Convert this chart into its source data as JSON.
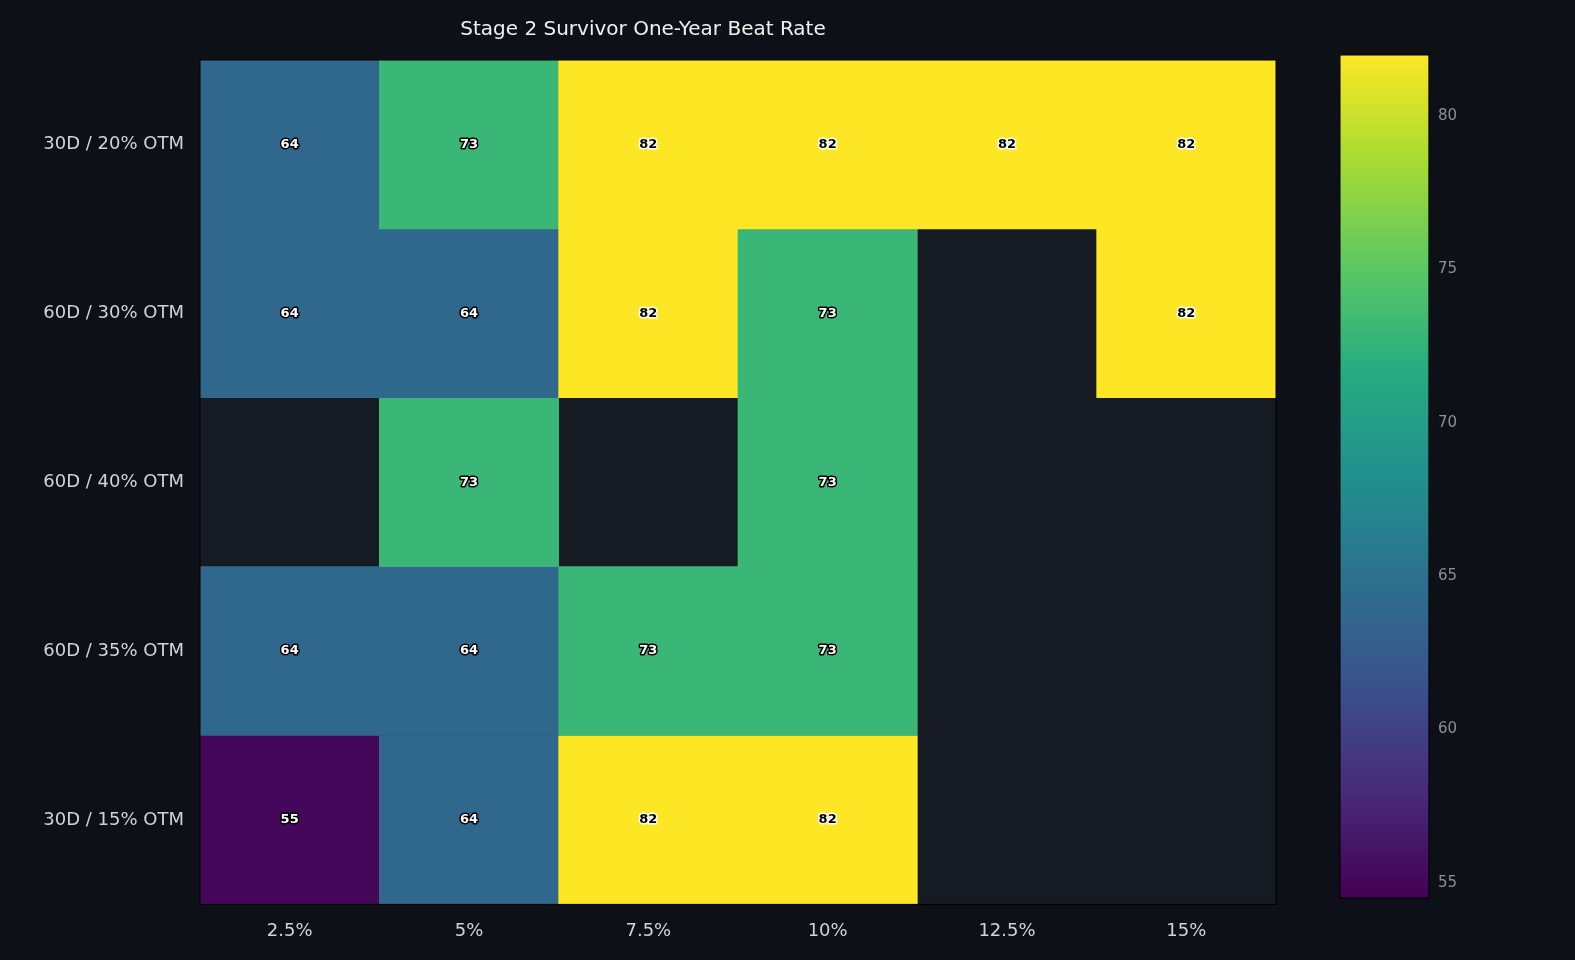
{
  "chart_data": {
    "type": "heatmap",
    "title": "Stage 2 Survivor One-Year Beat Rate",
    "categories": [
      "2.5%",
      "5%",
      "7.5%",
      "10%",
      "12.5%",
      "15%"
    ],
    "y_categories": [
      "30D / 20% OTM",
      "60D / 30% OTM",
      "60D / 40% OTM",
      "60D / 35% OTM",
      "30D / 15% OTM"
    ],
    "cells": [
      [
        64,
        73,
        82,
        82,
        82,
        82
      ],
      [
        64,
        64,
        82,
        73,
        null,
        82
      ],
      [
        null,
        73,
        null,
        73,
        null,
        null
      ],
      [
        64,
        64,
        73,
        73,
        null,
        null
      ],
      [
        55,
        64,
        82,
        82,
        null,
        null
      ]
    ],
    "clim": [
      54.5,
      82
    ],
    "cticks": [
      55,
      60,
      65,
      70,
      75,
      80
    ],
    "data_labels": true
  }
}
